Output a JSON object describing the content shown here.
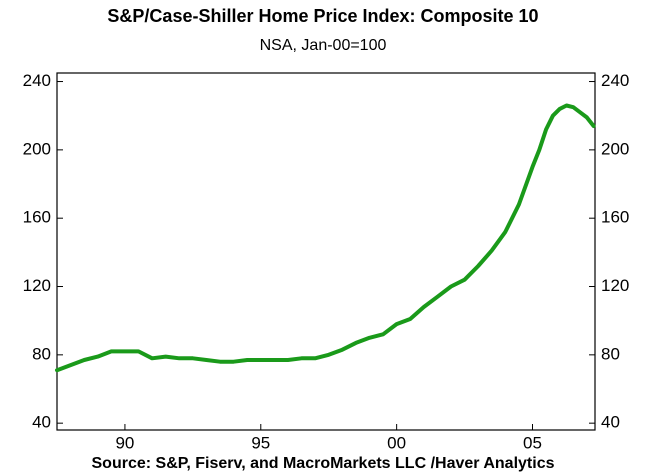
{
  "chart_data": {
    "type": "line",
    "title": "S&P/Case-Shiller Home Price Index: Composite 10",
    "subtitle": "NSA, Jan-00=100",
    "source": "Source:  S&P, Fiserv, and MacroMarkets LLC /Haver Analytics",
    "xlim": [
      1987.5,
      2007.3
    ],
    "xticks": [
      {
        "value": 1990,
        "label": "90"
      },
      {
        "value": 1995,
        "label": "95"
      },
      {
        "value": 2000,
        "label": "00"
      },
      {
        "value": 2005,
        "label": "05"
      }
    ],
    "ylim": [
      36,
      245
    ],
    "yticks": [
      40,
      80,
      120,
      160,
      200,
      240
    ],
    "y2lim": [
      36,
      245
    ],
    "y2ticks": [
      40,
      80,
      120,
      160,
      200,
      240
    ],
    "grid": false,
    "series": [
      {
        "color": "#1a9a1a",
        "x": [
          1987.5,
          1988,
          1988.5,
          1989,
          1989.5,
          1990,
          1990.5,
          1991,
          1991.5,
          1992,
          1992.5,
          1993,
          1993.5,
          1994,
          1994.5,
          1995,
          1995.5,
          1996,
          1996.5,
          1997,
          1997.5,
          1998,
          1998.5,
          1999,
          1999.5,
          2000,
          2000.5,
          2001,
          2001.5,
          2002,
          2002.5,
          2003,
          2003.5,
          2004,
          2004.5,
          2005,
          2005.25,
          2005.5,
          2005.75,
          2006,
          2006.25,
          2006.5,
          2006.75,
          2007,
          2007.25
        ],
        "values": [
          71,
          74,
          77,
          79,
          82,
          82,
          82,
          78,
          79,
          78,
          78,
          77,
          76,
          76,
          77,
          77,
          77,
          77,
          78,
          78,
          80,
          83,
          87,
          90,
          92,
          98,
          101,
          108,
          114,
          120,
          124,
          132,
          141,
          152,
          168,
          190,
          200,
          212,
          220,
          224,
          226,
          225,
          222,
          219,
          214
        ]
      }
    ]
  }
}
